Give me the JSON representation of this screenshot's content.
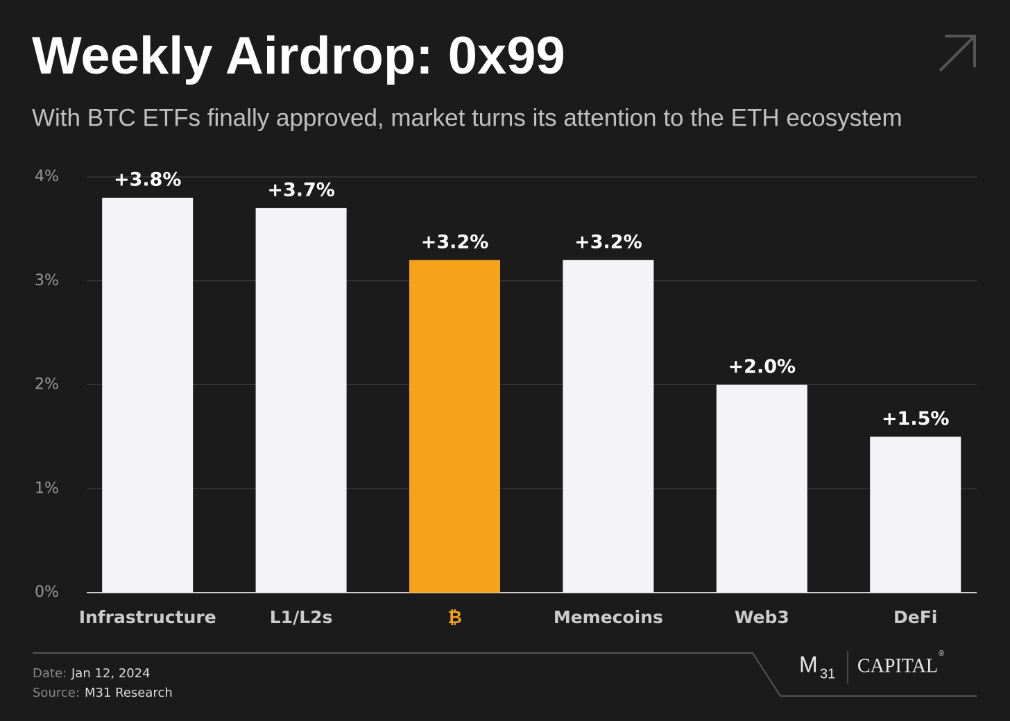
{
  "chart_data": {
    "type": "bar",
    "title": "Weekly Airdrop: 0x99",
    "subtitle": "With BTC ETFs finally approved, market turns its attention to the ETH ecosystem",
    "categories": [
      "Infrastructure",
      "L1/L2s",
      "₿",
      "Memecoins",
      "Web3",
      "DeFi"
    ],
    "values": [
      3.8,
      3.7,
      3.2,
      3.2,
      2.0,
      1.5
    ],
    "value_labels": [
      "+3.8%",
      "+3.7%",
      "+3.2%",
      "+3.2%",
      "+2.0%",
      "+1.5%"
    ],
    "colors": [
      "#f4f4f6",
      "#f4f4f6",
      "#f7a21b",
      "#f4f4f6",
      "#f4f4f6",
      "#f4f4f6"
    ],
    "ylim": [
      0,
      4
    ],
    "yticks": [
      {
        "value": 0,
        "label": "0%"
      },
      {
        "value": 1,
        "label": "1%"
      },
      {
        "value": 2,
        "label": "2%"
      },
      {
        "value": 3,
        "label": "3%"
      },
      {
        "value": 4,
        "label": "4%"
      }
    ],
    "grid": true
  },
  "footer": {
    "date_label": "Date:",
    "date": "Jan 12, 2024",
    "source_label": "Source:",
    "source": "M31 Research"
  },
  "logo": {
    "m": "M",
    "sub": "31",
    "name": "CAPITAL",
    "mark": "®"
  }
}
